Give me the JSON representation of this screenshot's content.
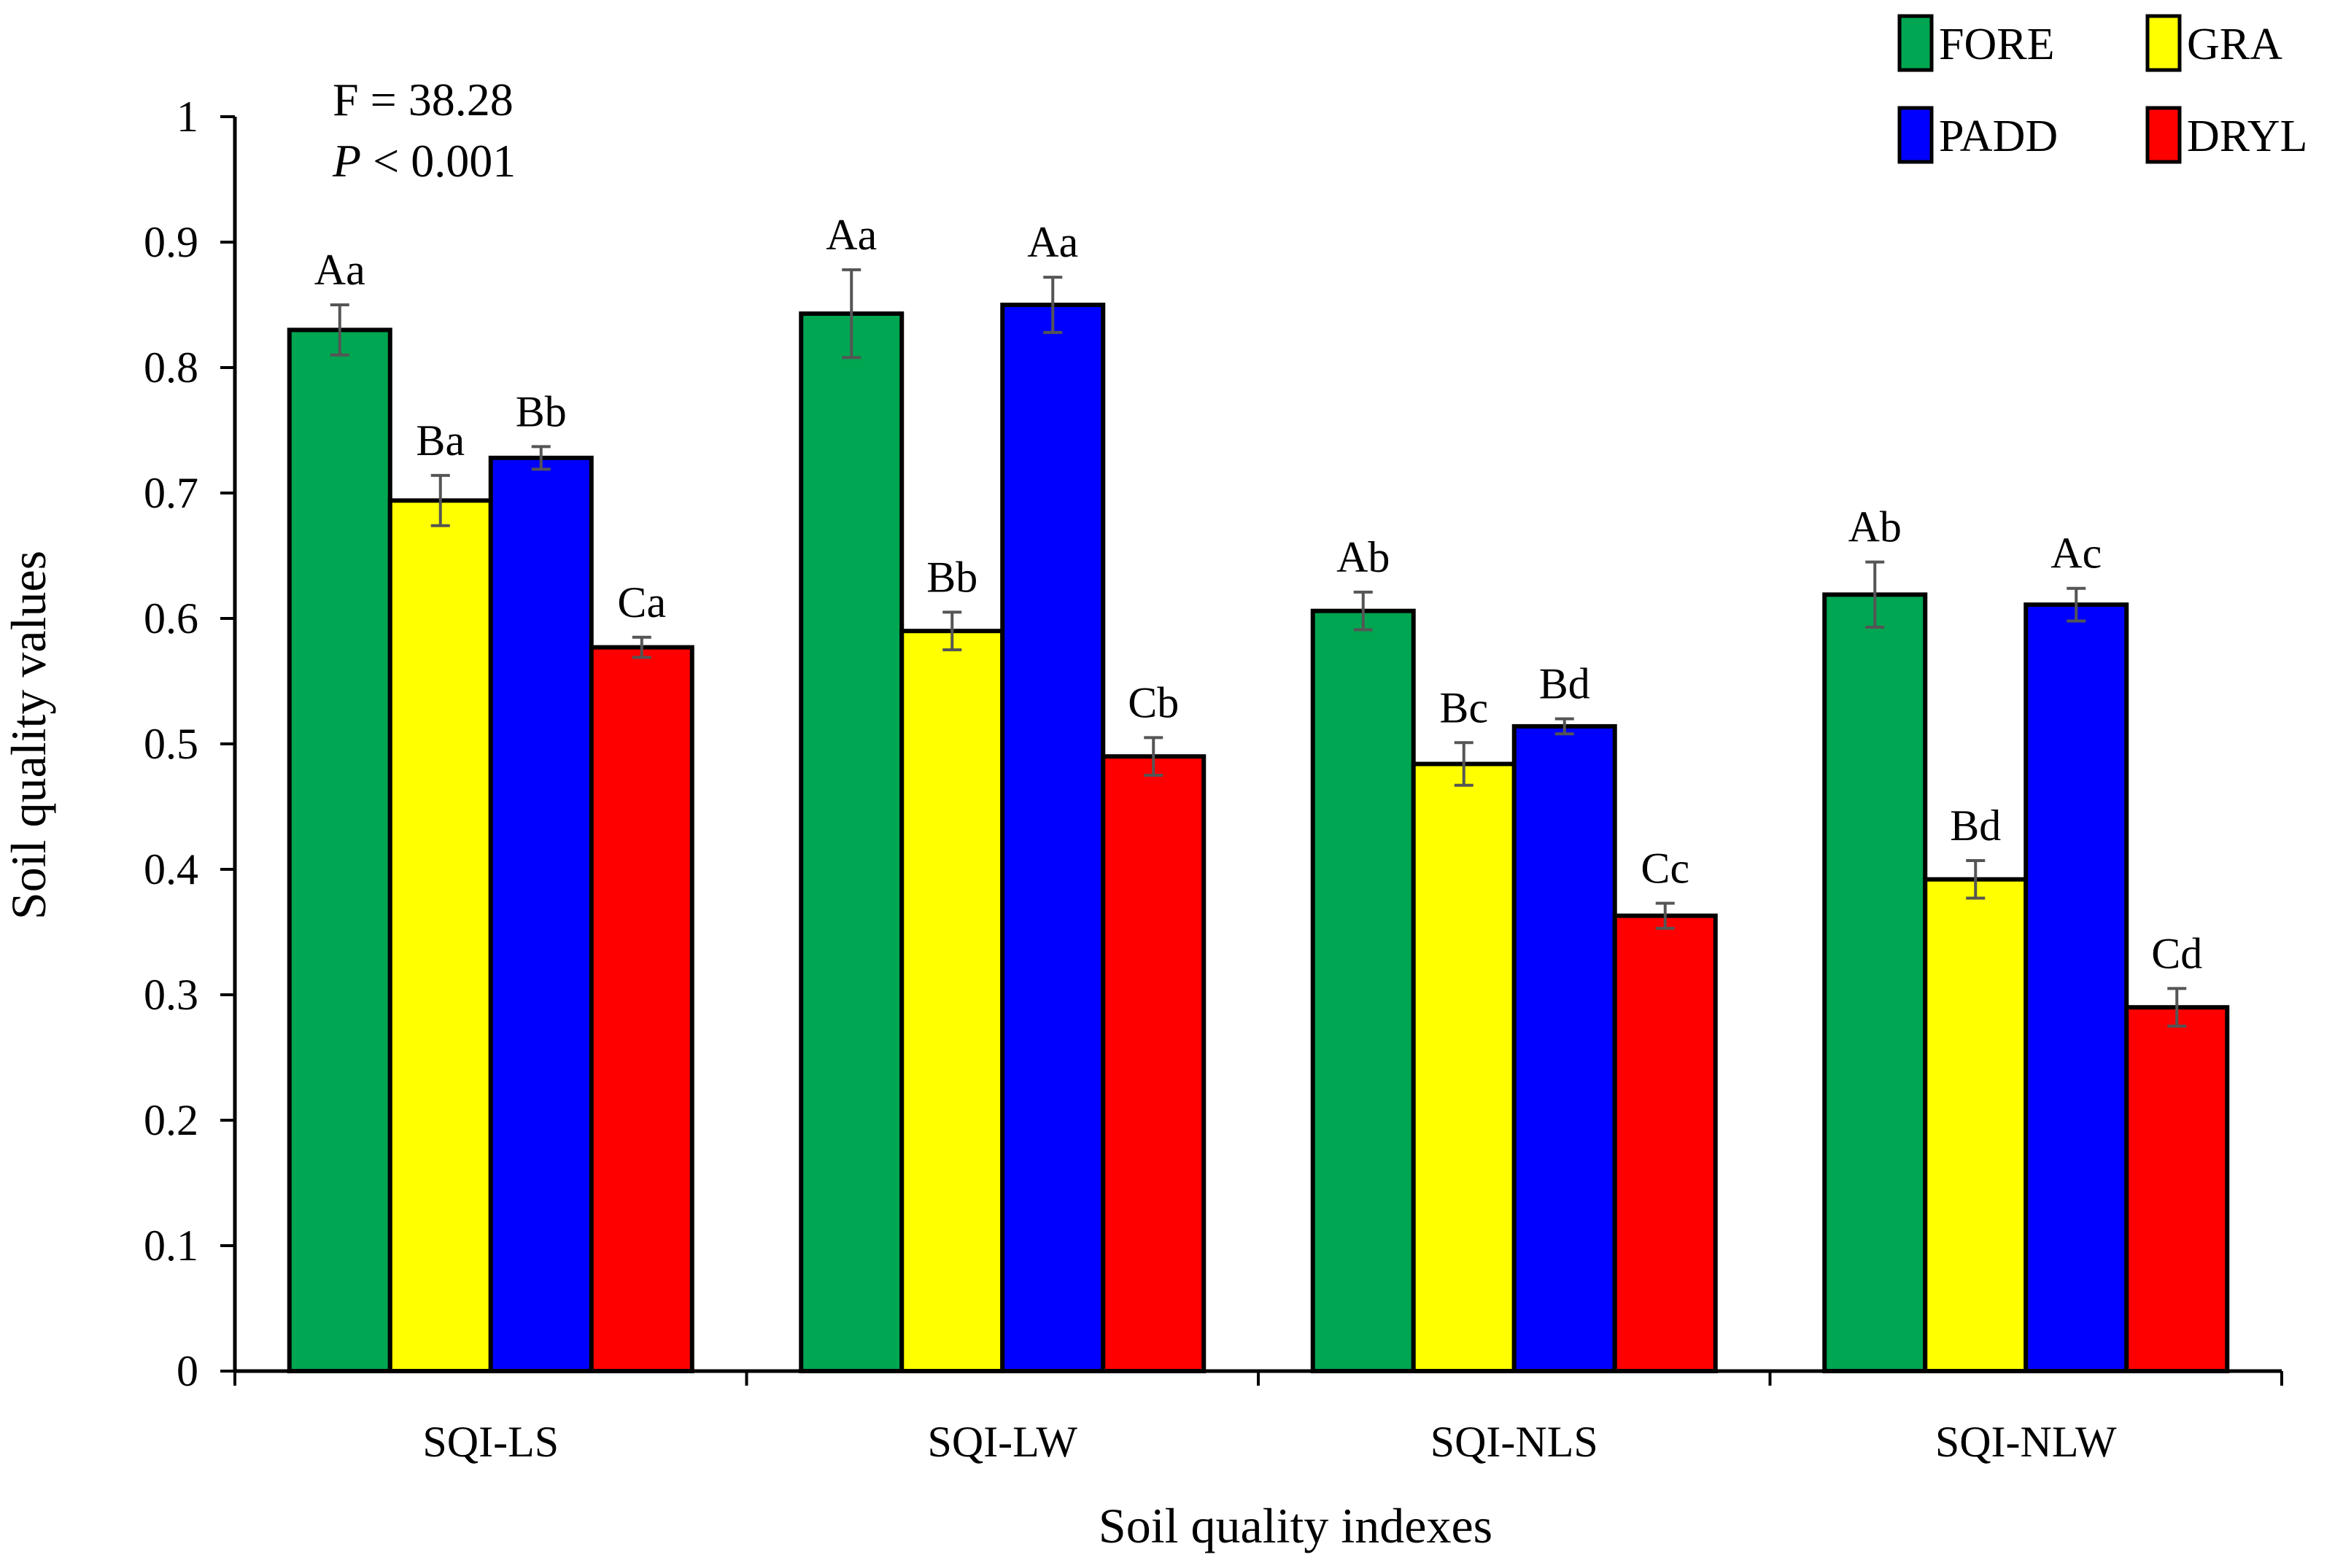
{
  "chart_data": {
    "type": "bar",
    "title": "",
    "xlabel": "Soil quality  indexes",
    "ylabel": "Soil quality  values",
    "ylim": [
      0,
      1
    ],
    "yticks": [
      "0",
      "0.1",
      "0.2",
      "0.3",
      "0.4",
      "0.5",
      "0.6",
      "0.7",
      "0.8",
      "0.9",
      "1"
    ],
    "grid": false,
    "legend_position": "top-right",
    "categories": [
      "SQI-LS",
      "SQI-LW",
      "SQI-NLS",
      "SQI-NLW"
    ],
    "series": [
      {
        "name": "FORE",
        "color": "#00A651",
        "values": [
          0.83,
          0.843,
          0.606,
          0.619
        ],
        "errors": [
          0.02,
          0.035,
          0.015,
          0.026
        ],
        "labels": [
          "Aa",
          "Aa",
          "Ab",
          "Ab"
        ]
      },
      {
        "name": "GRA",
        "color": "#FFFF00",
        "values": [
          0.694,
          0.59,
          0.484,
          0.392
        ],
        "errors": [
          0.02,
          0.015,
          0.017,
          0.015
        ],
        "labels": [
          "Ba",
          "Bb",
          "Bc",
          "Bd"
        ]
      },
      {
        "name": "PADD",
        "color": "#0000FF",
        "values": [
          0.728,
          0.85,
          0.514,
          0.611
        ],
        "errors": [
          0.009,
          0.022,
          0.006,
          0.013
        ],
        "labels": [
          "Bb",
          "Aa",
          "Bd",
          "Ac"
        ]
      },
      {
        "name": "DRYL",
        "color": "#FF0000",
        "values": [
          0.577,
          0.49,
          0.363,
          0.29
        ],
        "errors": [
          0.008,
          0.015,
          0.01,
          0.015
        ],
        "labels": [
          "Ca",
          "Cb",
          "Cc",
          "Cd"
        ]
      }
    ],
    "annotations": {
      "f_stat": "F = 38.28",
      "p_symbol": "P",
      "p_value": " < 0.001"
    }
  }
}
